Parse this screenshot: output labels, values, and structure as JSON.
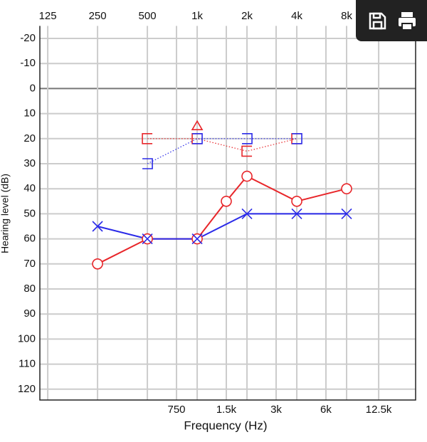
{
  "chart_data": {
    "type": "audiogram",
    "x_label": "Frequency (Hz)",
    "y_label": "Hearing level (dB)",
    "x_scale": "log",
    "xlim": [
      112,
      20900
    ],
    "ylim": [
      -25,
      125
    ],
    "y_inverted": true,
    "grid": true,
    "xticks_top": [
      125,
      250,
      500,
      {
        "value": 1000,
        "label": "1k"
      },
      {
        "value": 2000,
        "label": "2k"
      },
      {
        "value": 4000,
        "label": "4k"
      },
      {
        "value": 8000,
        "label": "8k"
      }
    ],
    "xticks_bottom": [
      750,
      {
        "value": 1500,
        "label": "1.5k"
      },
      {
        "value": 3000,
        "label": "3k"
      },
      {
        "value": 6000,
        "label": "6k"
      },
      {
        "value": 12500,
        "label": "12.5k"
      }
    ],
    "yticks": [
      -20,
      -10,
      0,
      10,
      20,
      30,
      40,
      50,
      60,
      70,
      80,
      90,
      100,
      110,
      120
    ],
    "series": [
      {
        "color": "#e8262a",
        "marker": "circle",
        "line": "solid",
        "x": [
          250,
          500,
          1000,
          1500,
          2000,
          4000,
          8000
        ],
        "values": [
          70,
          60,
          60,
          45,
          35,
          45,
          40
        ]
      },
      {
        "color": "#2a2ae8",
        "marker": "x",
        "line": "solid",
        "x": [
          250,
          500,
          1000,
          2000,
          4000,
          8000
        ],
        "values": [
          55,
          60,
          60,
          50,
          50,
          50
        ]
      },
      {
        "color": "#e8262a",
        "marker": "bracket-left",
        "line": "dotted",
        "x": [
          500,
          1000,
          2000,
          4000
        ],
        "values": [
          20,
          20,
          25,
          20
        ]
      },
      {
        "color": "#2a2ae8",
        "marker": "bracket-right",
        "line": "dotted",
        "x": [
          500,
          1000,
          2000,
          4000
        ],
        "values": [
          30,
          20,
          20,
          20
        ]
      },
      {
        "color": "#e8262a",
        "marker": "triangle",
        "line": "none",
        "x": [
          1000
        ],
        "values": [
          15
        ]
      }
    ]
  }
}
